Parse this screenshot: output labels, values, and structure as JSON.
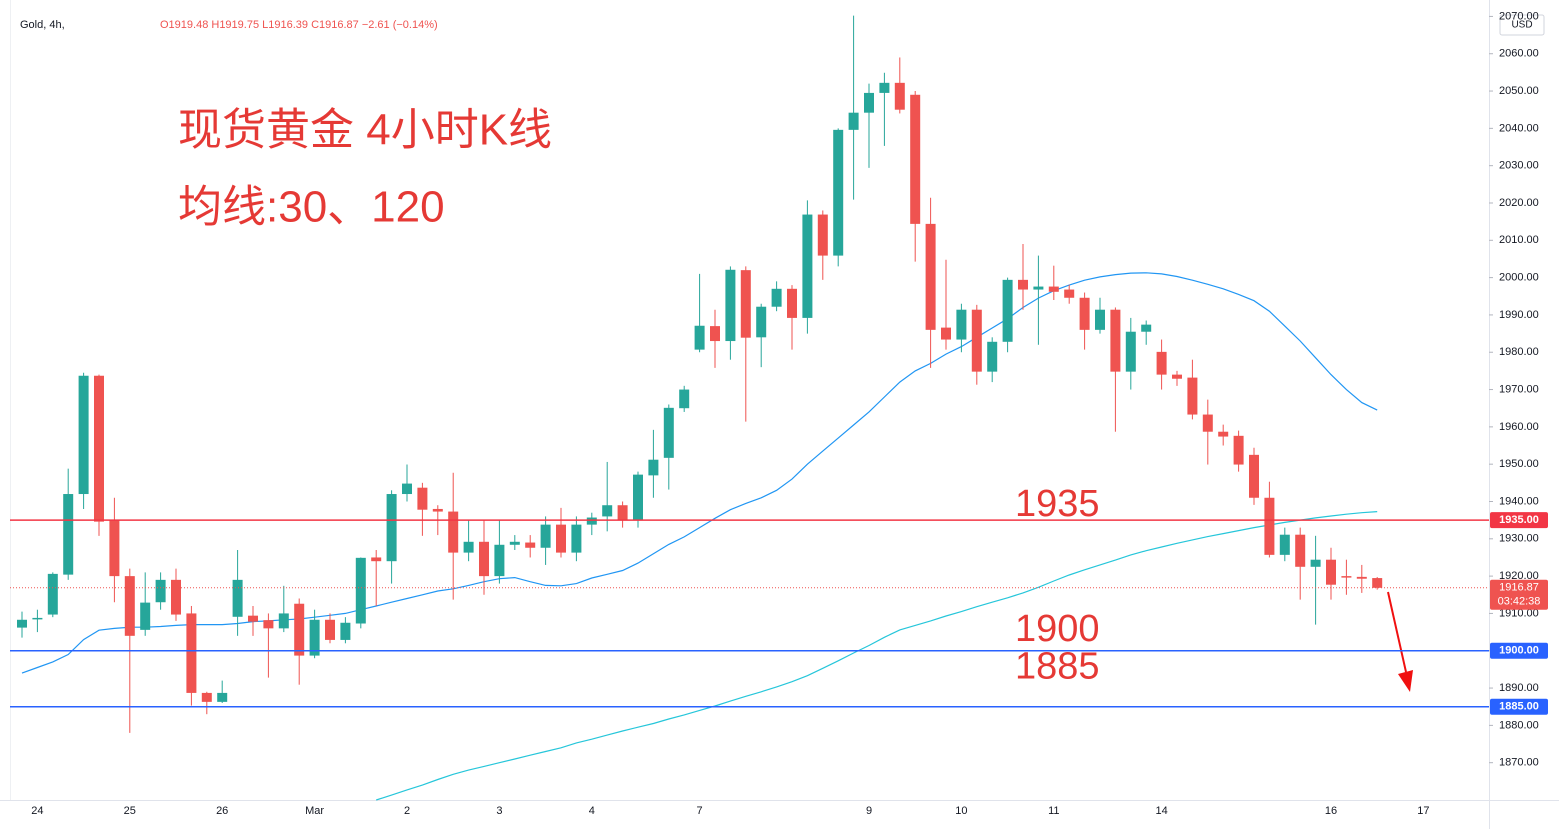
{
  "chart_data": {
    "type": "candlestick",
    "header": {
      "symbol": "Gold, 4h,",
      "ohlc": "O1919.48 H1919.75 L1916.39 C1916.87 −2.61 (−0.14%)"
    },
    "annotations": [
      "现货黄金 4小时K线",
      "均线:30、120"
    ],
    "currency": "USD",
    "up_color": "#26a69a",
    "down_color": "#ef5350",
    "categories": [
      null,
      "24",
      null,
      null,
      null,
      null,
      null,
      "25",
      null,
      null,
      null,
      null,
      null,
      "26",
      null,
      null,
      null,
      null,
      null,
      "Mar",
      null,
      null,
      null,
      null,
      null,
      "2",
      null,
      null,
      null,
      null,
      null,
      "3",
      null,
      null,
      null,
      null,
      null,
      "4",
      null,
      null,
      null,
      null,
      null,
      null,
      "7",
      null,
      null,
      null,
      null,
      null,
      null,
      null,
      null,
      null,
      null,
      "9",
      null,
      null,
      null,
      null,
      null,
      "10",
      null,
      null,
      null,
      null,
      null,
      "11",
      null,
      null,
      null,
      null,
      null,
      null,
      "14",
      null,
      null,
      null,
      null,
      null,
      null,
      null,
      null,
      null,
      null,
      "16",
      null,
      null,
      null,
      null,
      null,
      "17"
    ],
    "open": [
      1906.2,
      1908.4,
      1909.7,
      1920.4,
      1942,
      1973.7,
      1935,
      1920,
      1905.6,
      1913,
      1919,
      1910,
      1888.7,
      1886.3,
      1909.1,
      1909.4,
      1908.2,
      1906,
      1912.6,
      1898.7,
      1908.3,
      1902.9,
      1907.3,
      1925,
      1924,
      1942,
      1943.7,
      1938,
      1937.3,
      1926.3,
      1929.2,
      1920,
      1928.4,
      1929,
      1927.6,
      1933.8,
      1926.3,
      1933.8,
      1936,
      1939,
      1935,
      1947,
      1951.7,
      1965,
      1980.7,
      1987,
      1983,
      2002,
      1984,
      1992.2,
      1997,
      1989.2,
      2016.9,
      2005.9,
      2039.6,
      2044.2,
      2049.5,
      2052.2,
      2049,
      2014.4,
      1986.6,
      1983.4,
      1991.4,
      1974.8,
      1982.8,
      1999.4,
      1996.8,
      1997.6,
      1996.8,
      1994.6,
      1986,
      1991.4,
      1974.8,
      1985.5,
      1980.1,
      1974,
      1973.2,
      1963.3,
      1958.7,
      1957.6,
      1952.5,
      1941,
      1925.7,
      1931.1,
      1922.5,
      1924.4,
      1920,
      1919.8,
      1919.48,
      null,
      null,
      null
    ],
    "high": [
      1910.5,
      1911,
      1921,
      1948.8,
      1974.5,
      1974,
      1941,
      1922,
      1921,
      1921,
      1922,
      1912,
      1889,
      1892,
      1927,
      1912,
      1910,
      1917.4,
      1914,
      1911,
      1910,
      1909,
      1925,
      1927,
      1943,
      1949.9,
      1945,
      1939,
      1947.7,
      1935,
      1935,
      1935,
      1931,
      1931,
      1936,
      1938.3,
      1936,
      1937,
      1950.6,
      1940,
      1948,
      1959.2,
      1966,
      1971,
      2001,
      1991.4,
      2003,
      2003,
      1993,
      1999,
      1998,
      2020.7,
      2018,
      2040,
      2070.2,
      2052,
      2054.9,
      2059,
      2050,
      2021.4,
      2004.8,
      1993,
      1992.7,
      1984,
      2000,
      2009,
      2005.9,
      2003.2,
      1998.1,
      1996,
      1994.6,
      1992,
      1989.2,
      1988.5,
      1983.4,
      1975,
      1978,
      1967.3,
      1960.6,
      1959,
      1954.4,
      1945.3,
      1933,
      1933,
      1930.8,
      1927.6,
      1924.4,
      1923,
      1919.75,
      null,
      null,
      null
    ],
    "low": [
      1903.5,
      1905,
      1909,
      1919,
      1938,
      1930.8,
      1913,
      1878,
      1904,
      1911,
      1908,
      1885.3,
      1883,
      1886,
      1904,
      1904,
      1892.8,
      1905,
      1890.9,
      1898,
      1902,
      1902,
      1906,
      1912,
      1918,
      1940,
      1930.8,
      1931,
      1913.7,
      1924,
      1915,
      1918,
      1927,
      1925,
      1923,
      1925,
      1924,
      1931,
      1932,
      1933,
      1933,
      1941,
      1943.2,
      1964,
      1980,
      1975.8,
      1978,
      1961.4,
      1976,
      1991,
      1980.7,
      1985,
      1999.4,
      2003,
      2020.9,
      2029.4,
      2035.3,
      2044,
      2004.3,
      1975.8,
      1980.7,
      1980,
      1971.3,
      1972,
      1980,
      1991.4,
      1982,
      1994,
      1993,
      1980.7,
      1985,
      1958.7,
      1970,
      1982,
      1970,
      1971,
      1962,
      1949.9,
      1955,
      1948,
      1939.1,
      1925,
      1924,
      1913.7,
      1907,
      1913.7,
      1915,
      1915.5,
      1916.39,
      null,
      null,
      null
    ],
    "close": [
      1908.3,
      1908.8,
      1920.6,
      1942,
      1973.7,
      1934.6,
      1920,
      1904,
      1912.9,
      1919,
      1909.7,
      1888.7,
      1886.3,
      1888.7,
      1919,
      1907.8,
      1906,
      1910,
      1898.7,
      1908.3,
      1902.9,
      1907.5,
      1924.9,
      1924,
      1942,
      1944.8,
      1937.8,
      1937.3,
      1926.3,
      1929.2,
      1920,
      1928.4,
      1929.2,
      1927.6,
      1933.8,
      1926.3,
      1933.8,
      1935.7,
      1939,
      1935,
      1947.2,
      1951.2,
      1965.1,
      1970,
      1987.1,
      1983,
      2002.1,
      1983.9,
      1992.2,
      1997,
      1989.2,
      2016.9,
      2005.9,
      2039.6,
      2044.2,
      2049.5,
      2052.2,
      2045,
      2014.4,
      1986,
      1983.4,
      1991.4,
      1974.8,
      1982.8,
      1999.4,
      1996.8,
      1997.6,
      1996.2,
      1994.6,
      1986,
      1991.4,
      1974.8,
      1985.5,
      1987.4,
      1974,
      1972.9,
      1963.3,
      1958.7,
      1957.4,
      1949.9,
      1941,
      1925.7,
      1931.1,
      1922.5,
      1924.4,
      1917.7,
      1919.6,
      1919.3,
      1916.87,
      null,
      null,
      null
    ],
    "moving_averages": [
      {
        "color": "#2196f3",
        "values": [
          1894,
          1895.5,
          1897,
          1899,
          1903,
          1905.5,
          1906,
          1906.3,
          1906.3,
          1906.5,
          1906.8,
          1907,
          1907,
          1907,
          1907.3,
          1907.8,
          1908,
          1908.3,
          1908.5,
          1909,
          1909.5,
          1910,
          1911,
          1912,
          1913,
          1914,
          1915,
          1916,
          1916.6,
          1917.5,
          1918.5,
          1919.3,
          1919.6,
          1918.5,
          1917.5,
          1917.4,
          1918,
          1919.5,
          1920.5,
          1921.5,
          1923.5,
          1926,
          1928.5,
          1930.5,
          1933,
          1935.5,
          1937.8,
          1939.5,
          1941,
          1943,
          1946,
          1950,
          1953.5,
          1957,
          1960.5,
          1964,
          1968,
          1972,
          1975,
          1977,
          1979.5,
          1981.5,
          1984,
          1986.5,
          1989,
          1992,
          1994.5,
          1996.5,
          1998,
          1999.3,
          2000.2,
          2000.8,
          2001.2,
          2001.3,
          2001,
          2000.3,
          1999.3,
          1998.2,
          1997,
          1995.5,
          1993.8,
          1991,
          1987,
          1983,
          1978.5,
          1974,
          1970,
          1966.5,
          1964.5,
          null,
          null,
          null
        ]
      },
      {
        "color": "#26c6da",
        "values": [
          null,
          null,
          null,
          null,
          null,
          null,
          null,
          null,
          null,
          null,
          null,
          null,
          null,
          null,
          null,
          null,
          null,
          null,
          null,
          null,
          null,
          null,
          null,
          1860,
          1861.3,
          1862.7,
          1864,
          1865.5,
          1866.9,
          1868,
          1869,
          1870,
          1871,
          1872,
          1873,
          1874,
          1875.3,
          1876.3,
          1877.4,
          1878.5,
          1879.5,
          1880.5,
          1881.7,
          1882.8,
          1884,
          1885.2,
          1886.5,
          1887.8,
          1889,
          1890.3,
          1891.7,
          1893.3,
          1895.3,
          1897.3,
          1899.4,
          1901.4,
          1903.6,
          1905.6,
          1906.8,
          1908,
          1909.3,
          1910.5,
          1911.8,
          1913,
          1914.2,
          1915.5,
          1917,
          1918.7,
          1920.3,
          1921.7,
          1923,
          1924.3,
          1925.7,
          1926.8,
          1927.8,
          1928.8,
          1929.7,
          1930.6,
          1931.4,
          1932.2,
          1933,
          1933.7,
          1934.4,
          1935,
          1935.6,
          1936.1,
          1936.6,
          1937,
          1937.3,
          null,
          null,
          null
        ]
      }
    ],
    "ylim": [
      1860,
      2074.4
    ],
    "yticks": [
      {
        "value": 1870,
        "label": "1870.00"
      },
      {
        "value": 1880,
        "label": "1880.00"
      },
      {
        "value": 1890,
        "label": "1890.00"
      },
      {
        "value": 1900,
        "label": "1900.00"
      },
      {
        "value": 1910,
        "label": "1910.00"
      },
      {
        "value": 1920,
        "label": "1920.00"
      },
      {
        "value": 1930,
        "label": "1930.00"
      },
      {
        "value": 1940,
        "label": "1940.00"
      },
      {
        "value": 1950,
        "label": "1950.00"
      },
      {
        "value": 1960,
        "label": "1960.00"
      },
      {
        "value": 1970,
        "label": "1970.00"
      },
      {
        "value": 1980,
        "label": "1980.00"
      },
      {
        "value": 1990,
        "label": "1990.00"
      },
      {
        "value": 2000,
        "label": "2000.00"
      },
      {
        "value": 2010,
        "label": "2010.00"
      },
      {
        "value": 2020,
        "label": "2020.00"
      },
      {
        "value": 2030,
        "label": "2030.00"
      },
      {
        "value": 2040,
        "label": "2040.00"
      },
      {
        "value": 2050,
        "label": "2050.00"
      },
      {
        "value": 2060,
        "label": "2060.00"
      },
      {
        "value": 2070,
        "label": "2070.00"
      }
    ],
    "levels": [
      {
        "value": 1935,
        "label": "1935",
        "axis_label": "1935.00",
        "color": "#f23645"
      },
      {
        "value": 1900,
        "label": "1900",
        "axis_label": "1900.00",
        "color": "#2962ff"
      },
      {
        "value": 1885,
        "label": "1885",
        "axis_label": "1885.00",
        "color": "#2962ff"
      }
    ],
    "last_price": {
      "value": 1916.87,
      "label": "1916.87",
      "countdown": "03:42:38",
      "color": "#ef5350"
    }
  }
}
